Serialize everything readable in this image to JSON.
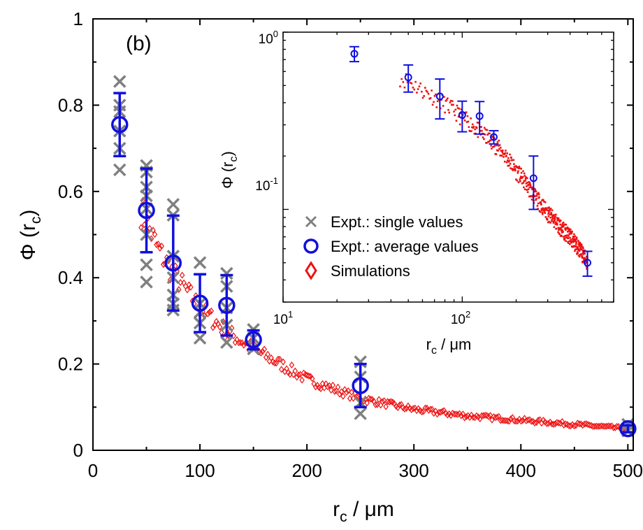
{
  "chart_data": [
    {
      "type": "scatter",
      "panel_label": "(b)",
      "xlabel": {
        "main": "r",
        "sub": "c",
        "unit": " / μm"
      },
      "ylabel": {
        "main": "Φ (r",
        "sub": "c",
        "close": ")"
      },
      "xlim": [
        0,
        505
      ],
      "ylim": [
        0,
        1
      ],
      "x_ticks": [
        0,
        100,
        200,
        300,
        400,
        500
      ],
      "y_ticks": [
        0,
        0.2,
        0.4,
        0.6,
        0.8,
        1
      ],
      "y_tick_labels": [
        "0",
        "0.2",
        "0.4",
        "0.6",
        "0.8",
        "1"
      ],
      "grid": false,
      "series": [
        {
          "name": "Expt.: single values",
          "marker": "x",
          "color": "#808080",
          "points": [
            [
              25,
              0.855
            ],
            [
              25,
              0.8
            ],
            [
              25,
              0.785
            ],
            [
              25,
              0.74
            ],
            [
              25,
              0.7
            ],
            [
              25,
              0.65
            ],
            [
              50,
              0.66
            ],
            [
              50,
              0.645
            ],
            [
              50,
              0.61
            ],
            [
              50,
              0.59
            ],
            [
              50,
              0.56
            ],
            [
              50,
              0.5
            ],
            [
              50,
              0.43
            ],
            [
              50,
              0.39
            ],
            [
              75,
              0.57
            ],
            [
              75,
              0.545
            ],
            [
              75,
              0.45
            ],
            [
              75,
              0.4
            ],
            [
              75,
              0.36
            ],
            [
              75,
              0.34
            ],
            [
              75,
              0.325
            ],
            [
              100,
              0.435
            ],
            [
              100,
              0.34
            ],
            [
              100,
              0.32
            ],
            [
              100,
              0.295
            ],
            [
              100,
              0.26
            ],
            [
              125,
              0.41
            ],
            [
              125,
              0.38
            ],
            [
              125,
              0.33
            ],
            [
              125,
              0.29
            ],
            [
              125,
              0.25
            ],
            [
              150,
              0.28
            ],
            [
              150,
              0.26
            ],
            [
              150,
              0.235
            ],
            [
              250,
              0.205
            ],
            [
              250,
              0.17
            ],
            [
              250,
              0.11
            ],
            [
              250,
              0.085
            ],
            [
              500,
              0.06
            ],
            [
              500,
              0.045
            ]
          ]
        },
        {
          "name": "Expt.: average values",
          "marker": "circle",
          "color": "#1010dd",
          "points": [
            {
              "x": 25,
              "y": 0.755,
              "err": 0.073
            },
            {
              "x": 50,
              "y": 0.556,
              "err": 0.097
            },
            {
              "x": 75,
              "y": 0.434,
              "err": 0.11
            },
            {
              "x": 100,
              "y": 0.341,
              "err": 0.067
            },
            {
              "x": 125,
              "y": 0.336,
              "err": 0.07
            },
            {
              "x": 150,
              "y": 0.256,
              "err": 0.022
            },
            {
              "x": 250,
              "y": 0.15,
              "err": 0.05
            },
            {
              "x": 500,
              "y": 0.05,
              "err": 0.008
            }
          ]
        },
        {
          "name": "Simulations",
          "marker": "diamond",
          "color": "#ee1111",
          "x_range": [
            45,
            500
          ],
          "curve_points": [
            [
              45,
              0.555
            ],
            [
              50,
              0.53
            ],
            [
              60,
              0.47
            ],
            [
              75,
              0.41
            ],
            [
              100,
              0.33
            ],
            [
              125,
              0.275
            ],
            [
              150,
              0.235
            ],
            [
              175,
              0.2
            ],
            [
              200,
              0.165
            ],
            [
              250,
              0.12
            ],
            [
              300,
              0.095
            ],
            [
              350,
              0.08
            ],
            [
              400,
              0.07
            ],
            [
              450,
              0.06
            ],
            [
              500,
              0.05
            ]
          ]
        }
      ]
    },
    {
      "type": "scatter",
      "inset": true,
      "xscale": "log",
      "yscale": "log",
      "xlabel": {
        "main": "r",
        "sub": "c",
        "unit": " / μm"
      },
      "ylabel": {
        "main": "Φ (r",
        "sub": "c",
        "close": ")"
      },
      "xlim": [
        10,
        700
      ],
      "ylim": [
        0.03,
        1
      ],
      "x_tick_labels": [
        {
          "base": "10",
          "exp": "1"
        },
        {
          "base": "10",
          "exp": "2"
        }
      ],
      "y_tick_labels": [
        {
          "base": "10",
          "exp": "0"
        },
        {
          "base": "10",
          "exp": "-1"
        }
      ],
      "legend": [
        {
          "label": "Expt.: single values",
          "marker": "x",
          "color": "#808080"
        },
        {
          "label": "Expt.: average values",
          "marker": "circle",
          "color": "#1010dd"
        },
        {
          "label": "Simulations",
          "marker": "diamond",
          "color": "#ee1111"
        }
      ]
    }
  ]
}
